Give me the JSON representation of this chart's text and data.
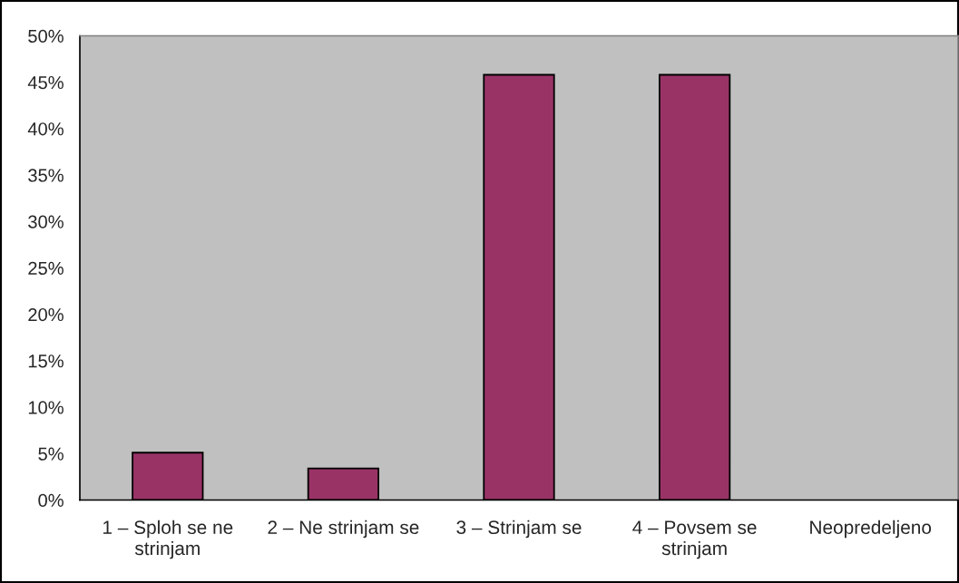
{
  "chart_data": {
    "type": "bar",
    "categories": [
      "1 – Sploh se ne strinjam",
      "2 – Ne strinjam se",
      "3 – Strinjam se",
      "4 – Povsem se strinjam",
      "Neopredeljeno"
    ],
    "values": [
      5.1,
      3.4,
      45.8,
      45.8,
      null
    ],
    "color": "#993366",
    "ylim": [
      0,
      50
    ],
    "yticks": [
      {
        "value": 0,
        "label": "0%"
      },
      {
        "value": 5,
        "label": "5%"
      },
      {
        "value": 10,
        "label": "10%"
      },
      {
        "value": 15,
        "label": "15%"
      },
      {
        "value": 20,
        "label": "20%"
      },
      {
        "value": 25,
        "label": "25%"
      },
      {
        "value": 30,
        "label": "30%"
      },
      {
        "value": 35,
        "label": "35%"
      },
      {
        "value": 40,
        "label": "40%"
      },
      {
        "value": 45,
        "label": "45%"
      },
      {
        "value": 50,
        "label": "50%"
      }
    ]
  }
}
